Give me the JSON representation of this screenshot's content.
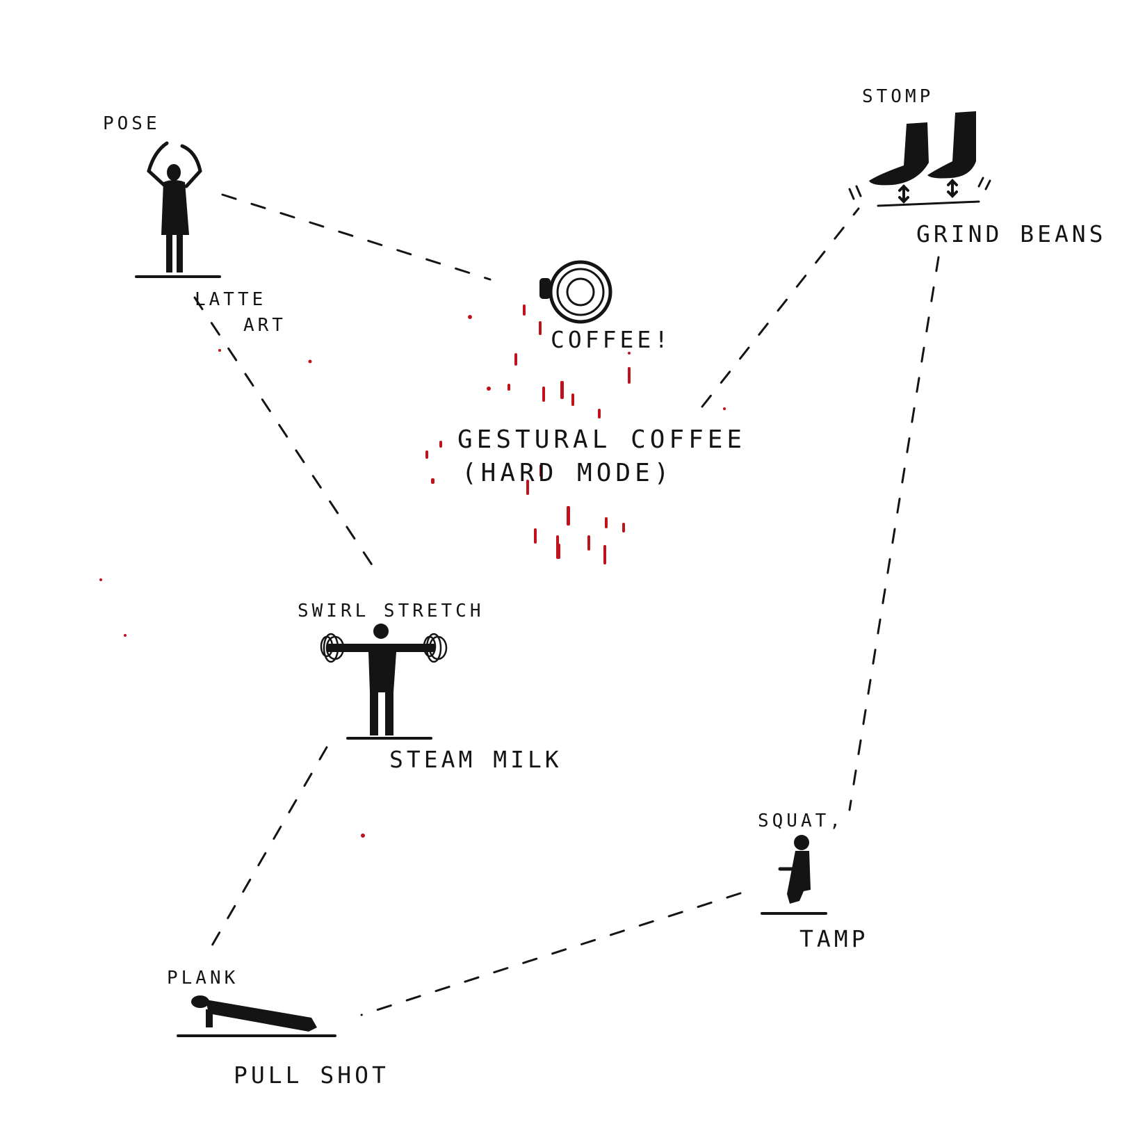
{
  "title": {
    "line1": "GESTURAL COFFEE",
    "line2": "(HARD MODE)"
  },
  "center": {
    "label": "COFFEE!",
    "icon": "coffee-cup-topdown-icon"
  },
  "stations": [
    {
      "id": "latte-art",
      "exercise": "POSE",
      "task_line1": "LATTE",
      "task_line2": "ART",
      "icon": "arms-overhead-pose-icon"
    },
    {
      "id": "grind-beans",
      "exercise": "STOMP",
      "task": "GRIND BEANS",
      "icon": "stomping-feet-icon"
    },
    {
      "id": "steam-milk",
      "exercise": "SWIRL STRETCH",
      "task": "STEAM MILK",
      "icon": "arm-circles-figure-icon"
    },
    {
      "id": "tamp",
      "exercise": "SQUAT,",
      "task": "TAMP",
      "icon": "squatting-figure-icon"
    },
    {
      "id": "pull-shot",
      "exercise": "PLANK",
      "task": "PULL SHOT",
      "icon": "plank-figure-icon"
    }
  ],
  "colors": {
    "ink": "#141414",
    "splatter": "#c0121c"
  }
}
